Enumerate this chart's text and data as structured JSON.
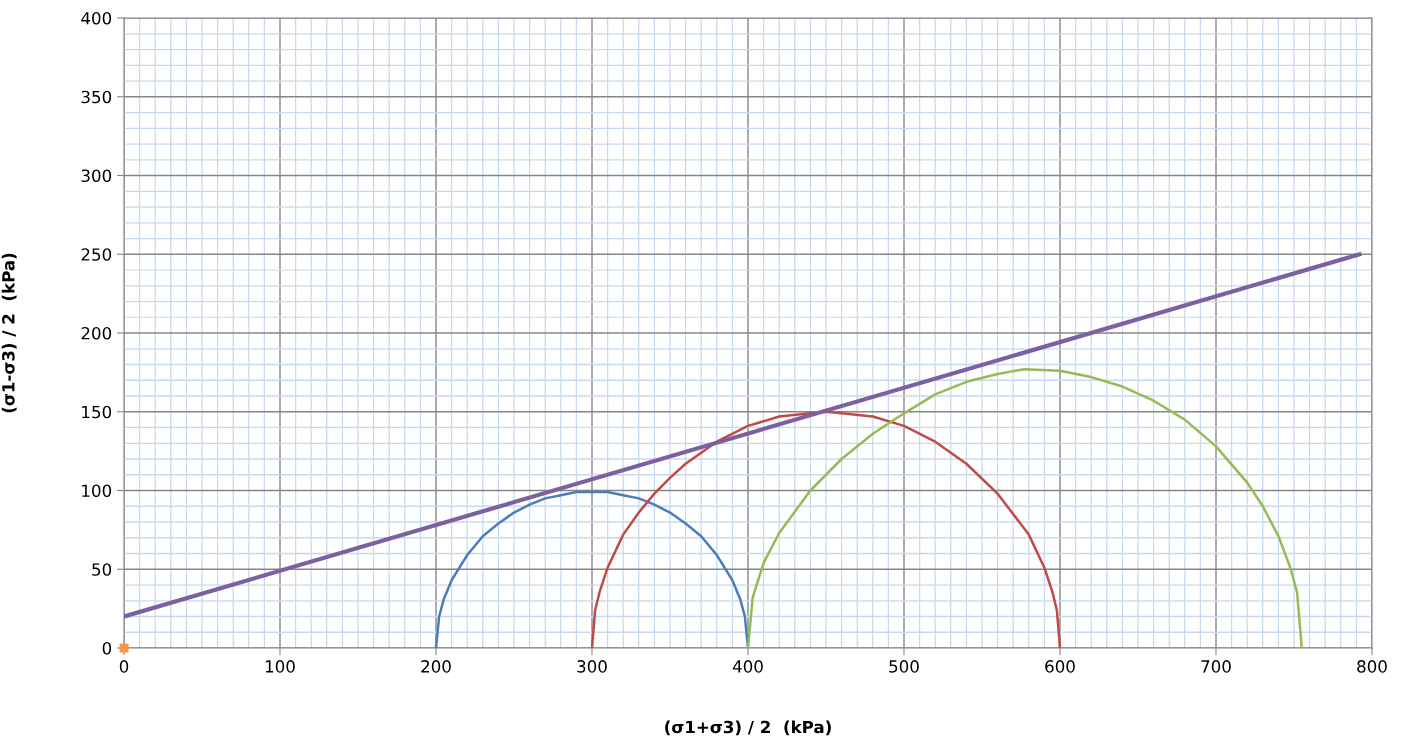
{
  "chart_data": {
    "type": "line",
    "xlabel": "(σ1+σ3) / 2  (kPa)",
    "ylabel": "(σ1-σ3) / 2  (kPa)",
    "xlim": [
      0,
      800
    ],
    "ylim": [
      0,
      400
    ],
    "xticks": [
      0,
      {
        "value": 10,
        "label": null
      },
      {
        "value": 20,
        "label": null
      },
      {
        "value": 30,
        "label": null
      },
      {
        "value": 40,
        "label": null
      },
      {
        "value": 50,
        "label": null
      },
      {
        "value": 60,
        "label": null
      },
      {
        "value": 70,
        "label": null
      },
      {
        "value": 80,
        "label": null
      },
      {
        "value": 90,
        "label": null
      },
      100,
      {
        "value": 110,
        "label": null
      },
      {
        "value": 120,
        "label": null
      },
      {
        "value": 130,
        "label": null
      },
      {
        "value": 140,
        "label": null
      },
      {
        "value": 150,
        "label": null
      },
      {
        "value": 160,
        "label": null
      },
      {
        "value": 170,
        "label": null
      },
      {
        "value": 180,
        "label": null
      },
      {
        "value": 190,
        "label": null
      },
      200,
      {
        "value": 210,
        "label": null
      },
      {
        "value": 220,
        "label": null
      },
      {
        "value": 230,
        "label": null
      },
      {
        "value": 240,
        "label": null
      },
      {
        "value": 250,
        "label": null
      },
      {
        "value": 260,
        "label": null
      },
      {
        "value": 270,
        "label": null
      },
      {
        "value": 280,
        "label": null
      },
      {
        "value": 290,
        "label": null
      },
      300,
      {
        "value": 310,
        "label": null
      },
      {
        "value": 320,
        "label": null
      },
      {
        "value": 330,
        "label": null
      },
      {
        "value": 340,
        "label": null
      },
      {
        "value": 350,
        "label": null
      },
      {
        "value": 360,
        "label": null
      },
      {
        "value": 370,
        "label": null
      },
      {
        "value": 380,
        "label": null
      },
      {
        "value": 390,
        "label": null
      },
      400,
      {
        "value": 410,
        "label": null
      },
      {
        "value": 420,
        "label": null
      },
      {
        "value": 430,
        "label": null
      },
      {
        "value": 440,
        "label": null
      },
      {
        "value": 450,
        "label": null
      },
      {
        "value": 460,
        "label": null
      },
      {
        "value": 470,
        "label": null
      },
      {
        "value": 480,
        "label": null
      },
      {
        "value": 490,
        "label": null
      },
      500,
      {
        "value": 510,
        "label": null
      },
      {
        "value": 520,
        "label": null
      },
      {
        "value": 530,
        "label": null
      },
      {
        "value": 540,
        "label": null
      },
      {
        "value": 550,
        "label": null
      },
      {
        "value": 560,
        "label": null
      },
      {
        "value": 570,
        "label": null
      },
      {
        "value": 580,
        "label": null
      },
      {
        "value": 590,
        "label": null
      },
      600,
      {
        "value": 610,
        "label": null
      },
      {
        "value": 620,
        "label": null
      },
      {
        "value": 630,
        "label": null
      },
      {
        "value": 640,
        "label": null
      },
      {
        "value": 650,
        "label": null
      },
      {
        "value": 660,
        "label": null
      },
      {
        "value": 670,
        "label": null
      },
      {
        "value": 680,
        "label": null
      },
      {
        "value": 690,
        "label": null
      },
      700,
      {
        "value": 710,
        "label": null
      },
      {
        "value": 720,
        "label": null
      },
      {
        "value": 730,
        "label": null
      },
      {
        "value": 740,
        "label": null
      },
      {
        "value": 750,
        "label": null
      },
      {
        "value": 760,
        "label": null
      },
      {
        "value": 770,
        "label": null
      },
      {
        "value": 780,
        "label": null
      },
      {
        "value": 790,
        "label": null
      },
      800
    ],
    "yticks": [
      0,
      {
        "value": 10,
        "label": null
      },
      {
        "value": 20,
        "label": null
      },
      {
        "value": 30,
        "label": null
      },
      {
        "value": 40,
        "label": null
      },
      50,
      {
        "value": 60,
        "label": null
      },
      {
        "value": 70,
        "label": null
      },
      {
        "value": 80,
        "label": null
      },
      {
        "value": 90,
        "label": null
      },
      100,
      {
        "value": 110,
        "label": null
      },
      {
        "value": 120,
        "label": null
      },
      {
        "value": 130,
        "label": null
      },
      {
        "value": 140,
        "label": null
      },
      150,
      {
        "value": 160,
        "label": null
      },
      {
        "value": 170,
        "label": null
      },
      {
        "value": 180,
        "label": null
      },
      {
        "value": 190,
        "label": null
      },
      200,
      {
        "value": 210,
        "label": null
      },
      {
        "value": 220,
        "label": null
      },
      {
        "value": 230,
        "label": null
      },
      {
        "value": 240,
        "label": null
      },
      250,
      {
        "value": 260,
        "label": null
      },
      {
        "value": 270,
        "label": null
      },
      {
        "value": 280,
        "label": null
      },
      {
        "value": 290,
        "label": null
      },
      300,
      {
        "value": 310,
        "label": null
      },
      {
        "value": 320,
        "label": null
      },
      {
        "value": 330,
        "label": null
      },
      {
        "value": 340,
        "label": null
      },
      350,
      {
        "value": 360,
        "label": null
      },
      {
        "value": 370,
        "label": null
      },
      {
        "value": 380,
        "label": null
      },
      {
        "value": 390,
        "label": null
      },
      400
    ],
    "grid": true,
    "line_style": "solid",
    "series": [
      {
        "color": "#4a7ebb",
        "x": [
          200,
          202,
          205,
          210,
          220,
          230,
          240,
          250,
          260,
          270,
          280,
          290,
          300,
          310,
          320,
          330,
          340,
          350,
          360,
          370,
          380,
          390,
          395,
          398,
          400
        ],
        "values": [
          0,
          20,
          31,
          43,
          59,
          71,
          79,
          86,
          91,
          95,
          97,
          99,
          99,
          99,
          97,
          95,
          91,
          86,
          79,
          71,
          59,
          43,
          31,
          20,
          0
        ]
      },
      {
        "color": "#be4b48",
        "x": [
          300,
          302,
          305,
          310,
          320,
          330,
          340,
          350,
          360,
          380,
          400,
          420,
          440,
          450,
          460,
          480,
          500,
          520,
          540,
          560,
          580,
          590,
          595,
          598,
          600
        ],
        "values": [
          0,
          24,
          36,
          51,
          72,
          86,
          98,
          108,
          117,
          131,
          141,
          147,
          149,
          150,
          149,
          147,
          141,
          131,
          117,
          98,
          72,
          51,
          36,
          24,
          0
        ]
      },
      {
        "color": "#98b954",
        "x": [
          400,
          403,
          410,
          420,
          440,
          460,
          480,
          500,
          520,
          540,
          560,
          577,
          600,
          620,
          640,
          660,
          680,
          700,
          720,
          730,
          740,
          748,
          752,
          755
        ],
        "values": [
          0,
          32,
          54,
          73,
          100,
          120,
          136,
          149,
          161,
          169,
          174,
          177,
          176,
          172,
          166,
          157,
          145,
          128,
          105,
          90,
          71,
          50,
          35,
          0
        ]
      },
      {
        "color": "#7d60a0",
        "x": [
          0,
          792
        ],
        "values": [
          20,
          250
        ]
      },
      {
        "type": "scatter",
        "marker": "square",
        "color": "#f79646",
        "x": [
          0
        ],
        "values": [
          0
        ]
      }
    ]
  }
}
